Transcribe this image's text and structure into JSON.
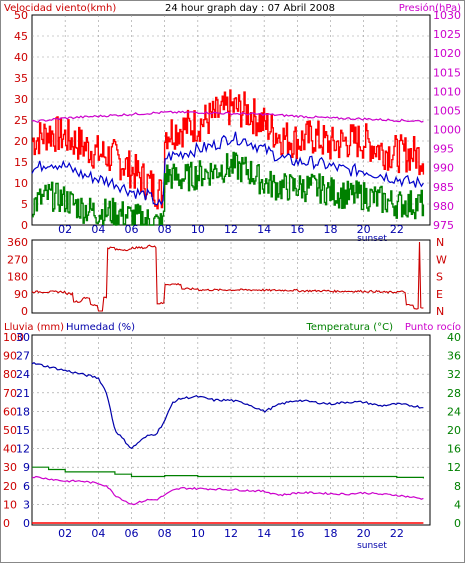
{
  "header": {
    "left_label": "Velocidad viento(kmh)",
    "title": "24 hour graph day : 07 Abril 2008",
    "right_label": "Presión(hPa)"
  },
  "bottom_header": {
    "rain_label": "Lluvia (mm)",
    "humidity_label": "Humedad (%)",
    "temp_label": "Temperatura (°C)",
    "dew_label": "Punto rocío"
  },
  "x_axis": {
    "ticks": [
      "02",
      "04",
      "06",
      "08",
      "10",
      "12",
      "14",
      "16",
      "18",
      "20",
      "22"
    ],
    "sunset_label": "sunset"
  },
  "colors": {
    "gust": "#ff0000",
    "wind": "#0000cc",
    "min_wind": "#008000",
    "pressure": "#cc00cc",
    "direction": "#cc0000",
    "humidity": "#0000aa",
    "temperature": "#008000",
    "dew_point": "#cc00cc",
    "rain": "#ff0000",
    "grid": "#999999"
  },
  "chart_data": [
    {
      "type": "line",
      "name": "wind_pressure",
      "xlim": [
        0,
        24
      ],
      "ylim": [
        0,
        50
      ],
      "y_ticks": [
        "0",
        "5",
        "10",
        "15",
        "20",
        "25",
        "30",
        "35",
        "40",
        "45",
        "50"
      ],
      "y2lim": [
        975,
        1030
      ],
      "y2_ticks": [
        "975",
        "980",
        "985",
        "990",
        "995",
        "1000",
        "1005",
        "1010",
        "1015",
        "1020",
        "1025",
        "1030"
      ],
      "series": [
        {
          "name": "Velocidad viento",
          "color": "gust",
          "axis": "left",
          "style": "noisy",
          "x": [
            0,
            1,
            2,
            3,
            4,
            5,
            6,
            7,
            7.9,
            8,
            9,
            10,
            11,
            12,
            13,
            14,
            15,
            16,
            17,
            18,
            19,
            20,
            21,
            22,
            23,
            23.6
          ],
          "y": [
            20,
            22,
            21,
            19,
            17,
            16,
            13,
            10,
            7,
            22,
            23,
            24,
            26,
            28,
            27,
            24,
            21,
            20,
            21,
            19,
            20,
            20,
            18,
            17,
            17,
            16
          ]
        },
        {
          "name": "",
          "color": "wind",
          "axis": "left",
          "style": "smooth",
          "x": [
            0,
            1,
            2,
            3,
            4,
            5,
            6,
            7,
            7.9,
            8,
            9,
            10,
            11,
            12,
            13,
            14,
            15,
            16,
            17,
            18,
            19,
            20,
            21,
            22,
            23,
            23.6
          ],
          "y": [
            13,
            15,
            14,
            12,
            11,
            10,
            8,
            7,
            4,
            16,
            17,
            18,
            19,
            21,
            20,
            18,
            16,
            15,
            15,
            14,
            13,
            13,
            12,
            11,
            10,
            10
          ]
        },
        {
          "name": "",
          "color": "min_wind",
          "axis": "left",
          "style": "noisy",
          "x": [
            0,
            1,
            2,
            3,
            4,
            5,
            6,
            7,
            7.9,
            8,
            9,
            10,
            11,
            12,
            13,
            14,
            15,
            16,
            17,
            18,
            19,
            20,
            21,
            22,
            23,
            23.6
          ],
          "y": [
            5,
            7,
            6,
            4,
            3,
            3,
            2,
            1,
            0,
            12,
            11,
            12,
            13,
            14,
            13,
            10,
            9,
            9,
            9,
            8,
            7,
            7,
            6,
            5,
            5,
            5
          ]
        },
        {
          "name": "Presión",
          "color": "pressure",
          "axis": "right",
          "style": "smooth",
          "x": [
            0,
            2,
            4,
            6,
            8,
            10,
            12,
            14,
            16,
            18,
            20,
            22,
            23.6
          ],
          "y": [
            1002,
            1003,
            1003.5,
            1004,
            1004.5,
            1004.5,
            1004.2,
            1004,
            1003.5,
            1003,
            1002.8,
            1002.4,
            1002.2
          ]
        }
      ]
    },
    {
      "type": "line",
      "name": "wind_direction",
      "xlim": [
        0,
        24
      ],
      "ylim": [
        0,
        360
      ],
      "y_ticks": [
        "0",
        "90",
        "180",
        "270",
        "360"
      ],
      "y2_ticks": [
        "N",
        "E",
        "S",
        "W",
        "N"
      ],
      "series": [
        {
          "name": "",
          "color": "direction",
          "axis": "left",
          "style": "step",
          "x": [
            0,
            1,
            2,
            2.5,
            3,
            3.5,
            4,
            4.3,
            4.5,
            5,
            6,
            7,
            7.4,
            7.5,
            8,
            9,
            10,
            12,
            14,
            16,
            18,
            20,
            21,
            22,
            22.5,
            23,
            23.3,
            23.4,
            23.6
          ],
          "y": [
            100,
            100,
            90,
            50,
            70,
            30,
            0,
            70,
            330,
            320,
            330,
            340,
            330,
            40,
            140,
            115,
            110,
            110,
            108,
            105,
            103,
            102,
            98,
            100,
            30,
            10,
            360,
            20,
            20
          ]
        }
      ]
    },
    {
      "type": "line",
      "name": "humidity_temperature",
      "xlim": [
        0,
        24
      ],
      "y_rain_ticks": [
        "0",
        "10",
        "20",
        "30",
        "40",
        "50",
        "60",
        "70",
        "80",
        "90",
        "100"
      ],
      "y_humidity_ticks": [
        "0",
        "3",
        "6",
        "9",
        "12",
        "15",
        "18",
        "21",
        "24",
        "27",
        "30"
      ],
      "y2lim": [
        0,
        40
      ],
      "y2_ticks": [
        "0",
        "4",
        "8",
        "12",
        "16",
        "20",
        "24",
        "28",
        "32",
        "36",
        "40"
      ],
      "series": [
        {
          "name": "Humedad",
          "color": "humidity",
          "axis": "rain",
          "style": "smooth",
          "x": [
            0,
            1,
            2,
            3,
            4,
            4.5,
            5,
            5.5,
            6,
            6.5,
            7,
            7.5,
            8,
            8.5,
            9,
            10,
            11,
            12,
            13,
            14,
            15,
            16,
            17,
            18,
            19,
            20,
            21,
            22,
            23,
            23.6
          ],
          "y": [
            86,
            84,
            82,
            80,
            78,
            70,
            50,
            45,
            40,
            44,
            47,
            48,
            55,
            65,
            67,
            68,
            66,
            66,
            64,
            60,
            64,
            66,
            65,
            64,
            65,
            65,
            63,
            64,
            63,
            62
          ]
        },
        {
          "name": "Temperatura",
          "color": "temperature",
          "axis": "right",
          "style": "step",
          "x": [
            0,
            1,
            2,
            3,
            4,
            5,
            6,
            7,
            8,
            9,
            10,
            12,
            14,
            16,
            18,
            20,
            22,
            23.6
          ],
          "y": [
            12,
            11.5,
            11,
            11,
            11,
            10.5,
            10,
            10,
            10.2,
            10.2,
            10,
            10,
            10,
            10,
            10,
            10,
            9.8,
            9.6
          ]
        },
        {
          "name": "Punto rocío",
          "color": "dew_point",
          "axis": "right",
          "style": "smooth",
          "x": [
            0,
            1,
            2,
            3,
            4,
            4.5,
            5,
            5.5,
            6,
            6.5,
            7,
            7.5,
            8,
            8.5,
            9,
            10,
            11,
            12,
            13,
            14,
            15,
            16,
            17,
            18,
            19,
            20,
            21,
            22,
            23,
            23.6
          ],
          "y": [
            10,
            9.5,
            9,
            9,
            8.5,
            8,
            6,
            5,
            4,
            4.5,
            5,
            5,
            6,
            7,
            7.5,
            7.4,
            7.3,
            7.2,
            7,
            6.8,
            6,
            6.5,
            6.5,
            6.3,
            6.2,
            6.5,
            6.2,
            6,
            5.5,
            5.2
          ]
        },
        {
          "name": "Lluvia",
          "color": "rain",
          "axis": "rain",
          "style": "step",
          "x": [
            0,
            23.6
          ],
          "y": [
            0,
            0
          ]
        }
      ]
    }
  ]
}
